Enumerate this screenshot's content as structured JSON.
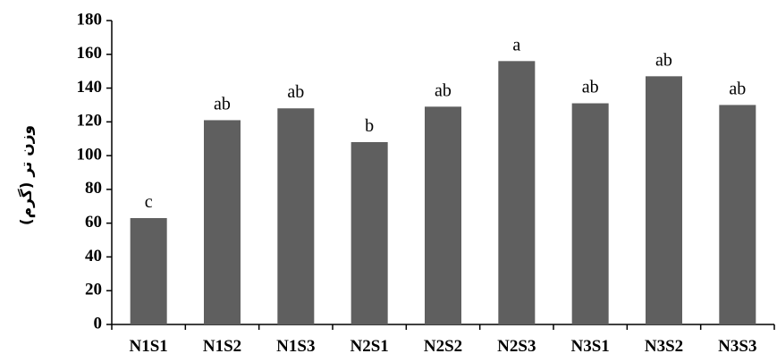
{
  "chart_data": {
    "type": "bar",
    "categories": [
      "N1S1",
      "N1S2",
      "N1S3",
      "N2S1",
      "N2S2",
      "N2S3",
      "N3S1",
      "N3S2",
      "N3S3"
    ],
    "values": [
      63,
      121,
      128,
      108,
      129,
      156,
      131,
      147,
      130
    ],
    "data_labels": [
      "c",
      "ab",
      "ab",
      "b",
      "ab",
      "a",
      "ab",
      "ab",
      "ab"
    ],
    "ylabel": "وزن تر (گرم)",
    "xlabel": "",
    "ylim": [
      0,
      180
    ],
    "yticks": [
      0,
      20,
      40,
      60,
      80,
      100,
      120,
      140,
      160,
      180
    ],
    "grid": false,
    "bar_color": "#5f5f5f"
  }
}
